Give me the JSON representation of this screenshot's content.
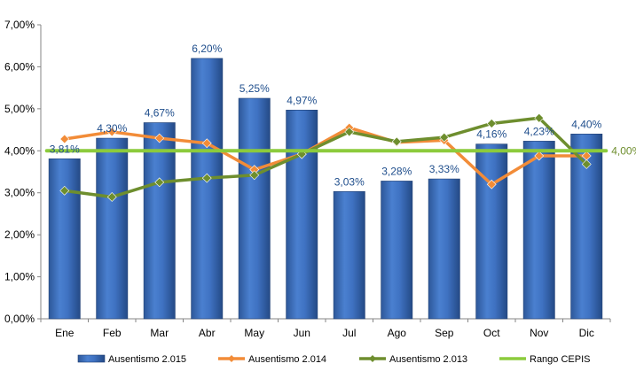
{
  "chart_data": {
    "type": "bar",
    "categories": [
      "Ene",
      "Feb",
      "Mar",
      "Abr",
      "May",
      "Jun",
      "Jul",
      "Ago",
      "Sep",
      "Oct",
      "Nov",
      "Dic"
    ],
    "ylim": [
      0,
      7
    ],
    "yticks": [
      "0,00%",
      "1,00%",
      "2,00%",
      "3,00%",
      "4,00%",
      "5,00%",
      "6,00%",
      "7,00%"
    ],
    "series": [
      {
        "name": "Ausentismo 2.015",
        "kind": "bar",
        "color": "#3A6EC0",
        "values": [
          3.81,
          4.3,
          4.67,
          6.2,
          5.25,
          4.97,
          3.03,
          3.28,
          3.33,
          4.16,
          4.23,
          4.4
        ],
        "labels": [
          "3,81%",
          "4,30%",
          "4,67%",
          "6,20%",
          "5,25%",
          "4,97%",
          "3,03%",
          "3,28%",
          "3,33%",
          "4,16%",
          "4,23%",
          "4,40%"
        ]
      },
      {
        "name": "Ausentismo 2.014",
        "kind": "line",
        "color": "#F28C38",
        "values": [
          4.28,
          4.45,
          4.3,
          4.18,
          3.55,
          3.92,
          4.55,
          4.2,
          4.25,
          3.2,
          3.88,
          3.88
        ]
      },
      {
        "name": "Ausentismo 2.013",
        "kind": "line",
        "color": "#6E8E2E",
        "values": [
          3.05,
          2.9,
          3.25,
          3.35,
          3.42,
          3.92,
          4.45,
          4.22,
          4.32,
          4.65,
          4.78,
          3.68
        ]
      },
      {
        "name": "Rango CEPIS",
        "kind": "line",
        "color": "#8CCB3C",
        "values": [
          4.0,
          4.0,
          4.0,
          4.0,
          4.0,
          4.0,
          4.0,
          4.0,
          4.0,
          4.0,
          4.0,
          4.0
        ],
        "end_label": "4,00%"
      }
    ],
    "grid": false,
    "legend": "bottom"
  }
}
